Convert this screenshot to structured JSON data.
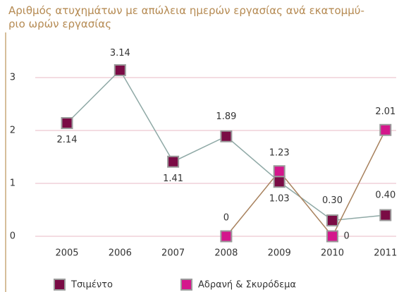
{
  "chart_data": {
    "type": "line",
    "title": [
      "Αριθμός ατυχημάτων με απώλεια ημερών εργασίας ανά εκατομμύ-",
      "ριο ωρών εργασίας"
    ],
    "categories": [
      "2005",
      "2006",
      "2007",
      "2008",
      "2009",
      "2010",
      "2011"
    ],
    "series": [
      {
        "name": "Τσιμέντο",
        "color": "#7a0b45",
        "line_color": "#8fa9a6",
        "values": [
          2.14,
          3.14,
          1.41,
          1.89,
          1.03,
          0.3,
          0.4
        ],
        "value_labels": [
          "2.14",
          "3.14",
          "1.41",
          "1.89",
          "1.03",
          "0.30",
          "0.40"
        ]
      },
      {
        "name": "Αδρανή & Σκυρόδεμα",
        "color": "#d4178c",
        "line_color": "#a8825e",
        "values": [
          null,
          null,
          null,
          0,
          1.23,
          0,
          2.01
        ],
        "value_labels": [
          null,
          null,
          null,
          "0",
          "1.23",
          "0",
          "2.01"
        ]
      }
    ],
    "ylim": [
      0,
      3.4
    ],
    "yticks": [
      0,
      1,
      2,
      3
    ],
    "grid": true,
    "grid_color": "#e9b9c6"
  }
}
